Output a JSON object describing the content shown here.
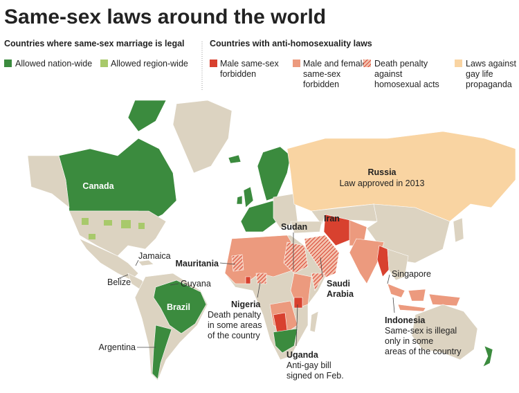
{
  "title": "Same-sex laws around the world",
  "legend": [
    {
      "heading": "Countries where same-sex marriage is legal",
      "items": [
        {
          "label": [
            "Allowed nation-wide"
          ],
          "color": "#3b8b3e"
        },
        {
          "label": [
            "Allowed region-wide"
          ],
          "color": "#a8c96b"
        }
      ]
    },
    {
      "heading": "Countries with anti-homosexuality laws",
      "items": [
        {
          "label": [
            "Male same-sex",
            "forbidden"
          ],
          "color": "#d8412f"
        },
        {
          "label": [
            "Male and female",
            "same-sex",
            "forbidden"
          ],
          "color": "#ec9a7e"
        },
        {
          "label": [
            "Death penalty",
            "against",
            "homosexual acts"
          ],
          "color": "#d8412f",
          "hatched": true
        },
        {
          "label": [
            "Laws against",
            "gay life",
            "propaganda"
          ],
          "color": "#f9d4a2"
        }
      ]
    }
  ],
  "land_color": "#dcd3c1",
  "labels": [
    {
      "name": "Canada"
    },
    {
      "name": "Russia",
      "note": [
        "Law approved in 2013"
      ]
    },
    {
      "name": "Iran"
    },
    {
      "name": "Sudan"
    },
    {
      "name": "Mauritania"
    },
    {
      "name": "Jamaica"
    },
    {
      "name": "Belize"
    },
    {
      "name": "Guyana"
    },
    {
      "name": "Brazil"
    },
    {
      "name": "Nigeria",
      "note": [
        "Death penalty",
        "in some areas",
        "of the country"
      ]
    },
    {
      "name": [
        "Saudi",
        "Arabia"
      ]
    },
    {
      "name": "Singapore"
    },
    {
      "name": "Indonesia",
      "note": [
        "Same-sex is illegal",
        "only in some",
        "areas of the country"
      ]
    },
    {
      "name": "Uganda",
      "note": [
        "Anti-gay bill",
        "signed on Feb."
      ]
    },
    {
      "name": "Argentina"
    }
  ]
}
